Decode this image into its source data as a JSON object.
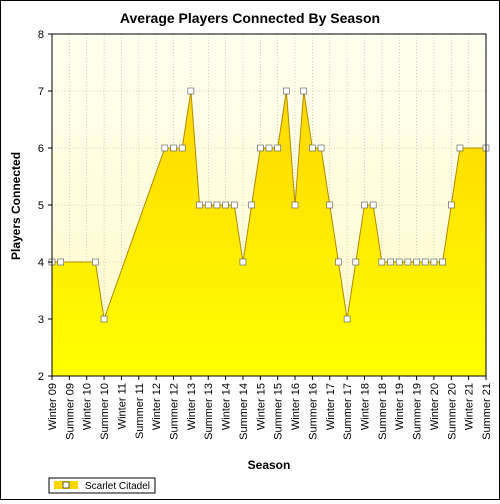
{
  "chart_data": {
    "type": "area",
    "title": "Average Players Connected By Season",
    "xlabel": "Season",
    "ylabel": "Players Connected",
    "ylim": [
      2,
      8
    ],
    "yticks": [
      2,
      3,
      4,
      5,
      6,
      7,
      8
    ],
    "grid": true,
    "legend_position": "bottom-left",
    "categories": [
      "Winter 09",
      "Summer 09",
      "Winter 10",
      "Summer 10",
      "Winter 11",
      "Summer 11",
      "Winter 12",
      "Summer 12",
      "Winter 13",
      "Summer 13",
      "Winter 14",
      "Summer 14",
      "Winter 15",
      "Summer 15",
      "Winter 16",
      "Summer 16",
      "Winter 17",
      "Summer 17",
      "Winter 18",
      "Summer 18",
      "Winter 19",
      "Summer 19",
      "Winter 20",
      "Summer 20",
      "Winter 21",
      "Summer 21"
    ],
    "series": [
      {
        "name": "Scarlet Citadel",
        "color": "#ffd700",
        "marker": "square",
        "points": [
          {
            "x": 0.0,
            "y": 4
          },
          {
            "x": 0.5,
            "y": 4
          },
          {
            "x": 2.5,
            "y": 4
          },
          {
            "x": 3.0,
            "y": 3
          },
          {
            "x": 6.5,
            "y": 6
          },
          {
            "x": 7.0,
            "y": 6
          },
          {
            "x": 7.5,
            "y": 6
          },
          {
            "x": 8.0,
            "y": 7
          },
          {
            "x": 8.5,
            "y": 5
          },
          {
            "x": 9.0,
            "y": 5
          },
          {
            "x": 9.5,
            "y": 5
          },
          {
            "x": 10.0,
            "y": 5
          },
          {
            "x": 10.5,
            "y": 5
          },
          {
            "x": 11.0,
            "y": 4
          },
          {
            "x": 11.5,
            "y": 5
          },
          {
            "x": 12.0,
            "y": 6
          },
          {
            "x": 12.5,
            "y": 6
          },
          {
            "x": 13.0,
            "y": 6
          },
          {
            "x": 13.5,
            "y": 7
          },
          {
            "x": 14.0,
            "y": 5
          },
          {
            "x": 14.5,
            "y": 7
          },
          {
            "x": 15.0,
            "y": 6
          },
          {
            "x": 15.5,
            "y": 6
          },
          {
            "x": 16.0,
            "y": 5
          },
          {
            "x": 16.5,
            "y": 4
          },
          {
            "x": 17.0,
            "y": 3
          },
          {
            "x": 17.5,
            "y": 4
          },
          {
            "x": 18.0,
            "y": 5
          },
          {
            "x": 18.5,
            "y": 5
          },
          {
            "x": 19.0,
            "y": 4
          },
          {
            "x": 19.5,
            "y": 4
          },
          {
            "x": 20.0,
            "y": 4
          },
          {
            "x": 20.5,
            "y": 4
          },
          {
            "x": 21.0,
            "y": 4
          },
          {
            "x": 21.5,
            "y": 4
          },
          {
            "x": 22.0,
            "y": 4
          },
          {
            "x": 22.5,
            "y": 4
          },
          {
            "x": 23.0,
            "y": 5
          },
          {
            "x": 23.5,
            "y": 6
          },
          {
            "x": 25.0,
            "y": 6
          }
        ]
      }
    ],
    "colors": {
      "plot_background_top": "#fffff0",
      "plot_background_bottom": "#fffbc8",
      "fill_top": "#ffd700",
      "fill_bottom": "#ffff00",
      "outline": "#b08a00",
      "grid": "#b0b0b0"
    }
  }
}
